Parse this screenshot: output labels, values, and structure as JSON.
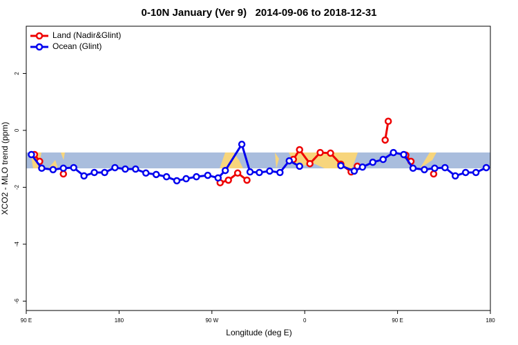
{
  "chart_data": {
    "type": "line",
    "title": "0-10N January (Ver 9)   2014-09-06 to 2018-12-31",
    "x_label": "Longitude (deg E)",
    "y_label": "XCO2 - MLO trend (ppm)",
    "xlim": [
      90,
      540
    ],
    "ylim": [
      -6.33,
      3.66
    ],
    "xticks": [
      {
        "value": 90,
        "label": "90 E"
      },
      180,
      {
        "value": 270,
        "label": "90 W"
      },
      {
        "value": 360,
        "label": "0"
      },
      {
        "value": 450,
        "label": "90 E"
      },
      {
        "value": 540,
        "label": "180"
      }
    ],
    "yticks": [
      2,
      0,
      -2,
      -4,
      -6
    ],
    "legend": "top-left",
    "series": [
      {
        "name": "Land (Nadir&Glint)",
        "color": "#ee0000",
        "x": [
          98,
          103,
          null,
          126,
          null,
          278,
          286,
          295,
          304,
          null,
          349,
          355,
          365,
          375,
          385,
          395,
          405,
          411,
          null,
          438,
          441,
          null,
          458,
          463,
          null,
          485
        ],
        "values": [
          -0.85,
          -1.09,
          null,
          -1.53,
          null,
          -1.84,
          -1.75,
          -1.5,
          -1.75,
          null,
          -1.02,
          -0.68,
          -1.17,
          -0.78,
          -0.8,
          -1.19,
          -1.46,
          -1.26,
          null,
          -0.34,
          0.32,
          null,
          -0.87,
          -1.09,
          null,
          -1.53
        ]
      },
      {
        "name": "Ocean (Glint)",
        "color": "#0000ee",
        "x": [
          95,
          105,
          116,
          126,
          136,
          146,
          156,
          166,
          176,
          186,
          196,
          206,
          216,
          226,
          236,
          245,
          255,
          266,
          276,
          283,
          299,
          307,
          316,
          326,
          336,
          345,
          355,
          null,
          395,
          408,
          416,
          426,
          436,
          446,
          456,
          465,
          476,
          486,
          496,
          506,
          516,
          526,
          536
        ],
        "values": [
          -0.85,
          -1.33,
          -1.38,
          -1.33,
          -1.31,
          -1.6,
          -1.48,
          -1.48,
          -1.31,
          -1.36,
          -1.36,
          -1.5,
          -1.55,
          -1.63,
          -1.77,
          -1.7,
          -1.63,
          -1.58,
          -1.67,
          -1.41,
          -0.49,
          -1.46,
          -1.48,
          -1.43,
          -1.48,
          -1.07,
          -1.26,
          null,
          -1.24,
          -1.43,
          -1.29,
          -1.12,
          -1.02,
          -0.78,
          -0.85,
          -1.33,
          -1.38,
          -1.33,
          -1.31,
          -1.6,
          -1.48,
          -1.48,
          -1.31
        ]
      }
    ]
  }
}
